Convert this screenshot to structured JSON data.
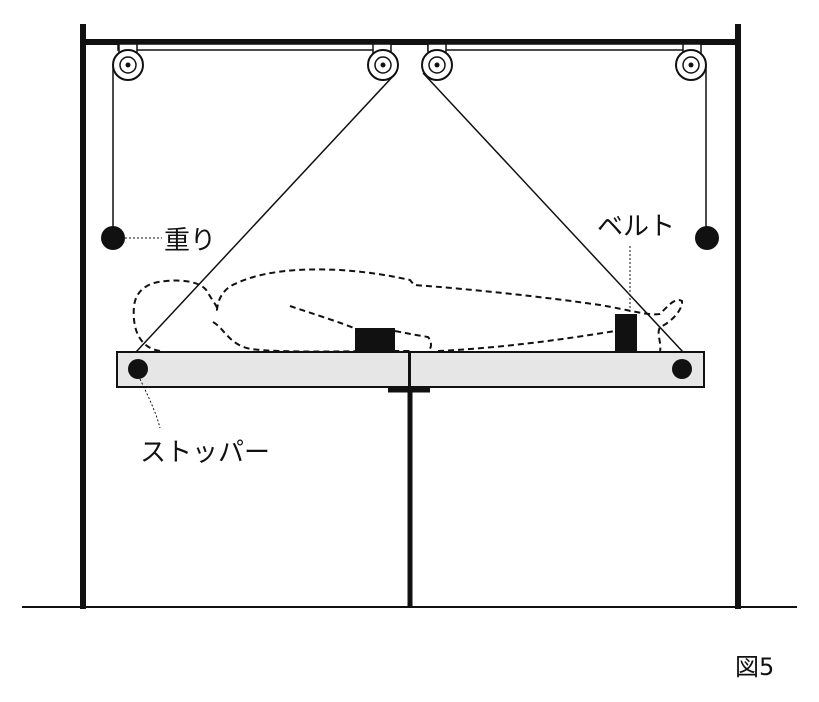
{
  "labels": {
    "weight": "重り",
    "belt": "ベルト",
    "stopper": "ストッパー",
    "figure_number": "図5"
  },
  "colors": {
    "line": "#111111",
    "board": "#e6e6e6",
    "background": "#ffffff"
  }
}
